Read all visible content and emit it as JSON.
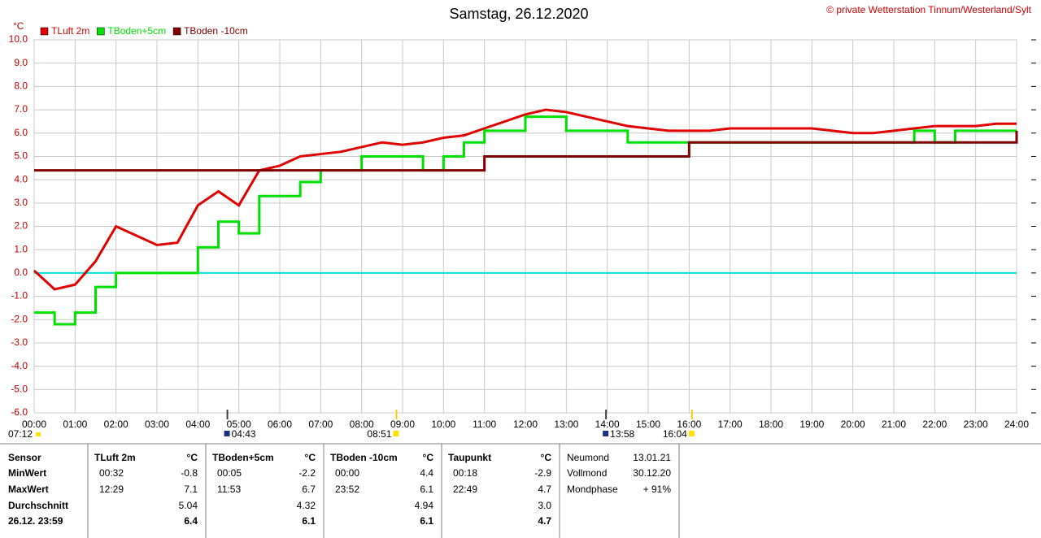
{
  "chart_data": {
    "type": "line",
    "title": "Samstag, 26.12.2020",
    "copyright": "© private Wetterstation Tinnum/Westerland/Sylt",
    "y_unit": "°C",
    "x": [
      0,
      0.5,
      1,
      1.5,
      2,
      2.5,
      3,
      3.5,
      4,
      4.5,
      5,
      5.5,
      6,
      6.5,
      7,
      7.5,
      8,
      8.5,
      9,
      9.5,
      10,
      10.5,
      11,
      11.5,
      12,
      12.5,
      13,
      13.5,
      14,
      14.5,
      15,
      15.5,
      16,
      16.5,
      17,
      17.5,
      18,
      18.5,
      19,
      19.5,
      20,
      20.5,
      21,
      21.5,
      22,
      22.5,
      23,
      23.5,
      24
    ],
    "series": [
      {
        "name": "TLuft 2m",
        "color": "#e00000",
        "step": false,
        "values": [
          0.1,
          -0.7,
          -0.5,
          0.5,
          2.0,
          1.6,
          1.2,
          1.3,
          2.9,
          3.5,
          2.9,
          4.4,
          4.6,
          5.0,
          5.1,
          5.2,
          5.4,
          5.6,
          5.5,
          5.6,
          5.8,
          5.9,
          6.2,
          6.5,
          6.8,
          7.0,
          6.9,
          6.7,
          6.5,
          6.3,
          6.2,
          6.1,
          6.1,
          6.1,
          6.2,
          6.2,
          6.2,
          6.2,
          6.2,
          6.1,
          6.0,
          6.0,
          6.1,
          6.2,
          6.3,
          6.3,
          6.3,
          6.4,
          6.4
        ]
      },
      {
        "name": "TBoden+5cm",
        "color": "#00e000",
        "step": true,
        "values": [
          -1.7,
          -2.2,
          -1.7,
          -0.6,
          0,
          0,
          0,
          0,
          1.1,
          2.2,
          1.7,
          3.3,
          3.3,
          3.9,
          4.4,
          4.4,
          5.0,
          5.0,
          5.0,
          4.4,
          5.0,
          5.6,
          6.1,
          6.1,
          6.7,
          6.7,
          6.1,
          6.1,
          6.1,
          5.6,
          5.6,
          5.6,
          5.6,
          5.6,
          5.6,
          5.6,
          5.6,
          5.6,
          5.6,
          5.6,
          5.6,
          5.6,
          5.6,
          6.1,
          5.6,
          6.1,
          6.1,
          6.1,
          6.1
        ]
      },
      {
        "name": "TBoden -10cm",
        "color": "#800000",
        "step": true,
        "values": [
          4.4,
          4.4,
          4.4,
          4.4,
          4.4,
          4.4,
          4.4,
          4.4,
          4.4,
          4.4,
          4.4,
          4.4,
          4.4,
          4.4,
          4.4,
          4.4,
          4.4,
          4.4,
          4.4,
          4.4,
          4.4,
          4.4,
          5.0,
          5.0,
          5.0,
          5.0,
          5.0,
          5.0,
          5.0,
          5.0,
          5.0,
          5.0,
          5.6,
          5.6,
          5.6,
          5.6,
          5.6,
          5.6,
          5.6,
          5.6,
          5.6,
          5.6,
          5.6,
          5.6,
          5.6,
          5.6,
          5.6,
          5.6,
          6.1
        ]
      }
    ],
    "reference_line": 0,
    "reference_color": "#00e0e0",
    "xlim": [
      0,
      24
    ],
    "ylim": [
      -6,
      10
    ],
    "xticks": [
      {
        "value": 0,
        "label": "00:00"
      },
      {
        "value": 1,
        "label": "01:00"
      },
      {
        "value": 2,
        "label": "02:00"
      },
      {
        "value": 3,
        "label": "03:00"
      },
      {
        "value": 4,
        "label": "04:00"
      },
      {
        "value": 5,
        "label": "05:00"
      },
      {
        "value": 6,
        "label": "06:00"
      },
      {
        "value": 7,
        "label": "07:00"
      },
      {
        "value": 8,
        "label": "08:00"
      },
      {
        "value": 9,
        "label": "09:00"
      },
      {
        "value": 10,
        "label": "10:00"
      },
      {
        "value": 11,
        "label": "11:00"
      },
      {
        "value": 12,
        "label": "12:00"
      },
      {
        "value": 13,
        "label": "13:00"
      },
      {
        "value": 14,
        "label": "14:00"
      },
      {
        "value": 15,
        "label": "15:00"
      },
      {
        "value": 16,
        "label": "16:00"
      },
      {
        "value": 17,
        "label": "17:00"
      },
      {
        "value": 18,
        "label": "18:00"
      },
      {
        "value": 19,
        "label": "19:00"
      },
      {
        "value": 20,
        "label": "20:00"
      },
      {
        "value": 21,
        "label": "21:00"
      },
      {
        "value": 22,
        "label": "22:00"
      },
      {
        "value": 23,
        "label": "23:00"
      },
      {
        "value": 24,
        "label": "24:00"
      }
    ],
    "yticks": [
      {
        "value": 10,
        "label": "10.0"
      },
      {
        "value": 9,
        "label": "9.0"
      },
      {
        "value": 8,
        "label": "8.0"
      },
      {
        "value": 7,
        "label": "7.0"
      },
      {
        "value": 6,
        "label": "6.0"
      },
      {
        "value": 5,
        "label": "5.0"
      },
      {
        "value": 4,
        "label": "4.0"
      },
      {
        "value": 3,
        "label": "3.0"
      },
      {
        "value": 2,
        "label": "2.0"
      },
      {
        "value": 1,
        "label": "1.0"
      },
      {
        "value": 0,
        "label": "0.0"
      },
      {
        "value": -1,
        "label": "-1.0"
      },
      {
        "value": -2,
        "label": "-2.0"
      },
      {
        "value": -3,
        "label": "-3.0"
      },
      {
        "value": -4,
        "label": "-4.0"
      },
      {
        "value": -5,
        "label": "-5.0"
      },
      {
        "value": -6,
        "label": "-6.0"
      }
    ],
    "grid": true,
    "sunrise_label": "07:12",
    "markers": [
      {
        "x": 4.72,
        "label": "04:43"
      },
      {
        "x": 8.85,
        "label": "08:51"
      },
      {
        "x": 13.97,
        "label": "13:58"
      },
      {
        "x": 16.07,
        "label": "16:04"
      }
    ]
  },
  "table": {
    "row_labels": [
      "Sensor",
      "MinWert",
      "MaxWert",
      "Durchschnitt",
      "26.12. 23:59"
    ],
    "sensors": [
      {
        "name": "TLuft 2m",
        "unit": "°C",
        "min_time": "00:32",
        "min": "-0.8",
        "max_time": "12:29",
        "max": "7.1",
        "avg": "5.04",
        "current": "6.4"
      },
      {
        "name": "TBoden+5cm",
        "unit": "°C",
        "min_time": "00:05",
        "min": "-2.2",
        "max_time": "11:53",
        "max": "6.7",
        "avg": "4.32",
        "current": "6.1"
      },
      {
        "name": "TBoden -10cm",
        "unit": "°C",
        "min_time": "00:00",
        "min": "4.4",
        "max_time": "23:52",
        "max": "6.1",
        "avg": "4.94",
        "current": "6.1"
      },
      {
        "name": "Taupunkt",
        "unit": "°C",
        "min_time": "00:18",
        "min": "-2.9",
        "max_time": "22:49",
        "max": "4.7",
        "avg": "3.0",
        "current": "4.7"
      }
    ],
    "moon": [
      [
        "Neumond",
        "13.01.21"
      ],
      [
        "Vollmond",
        "30.12.20"
      ],
      [
        "Mondphase",
        "+ 91%"
      ]
    ]
  }
}
